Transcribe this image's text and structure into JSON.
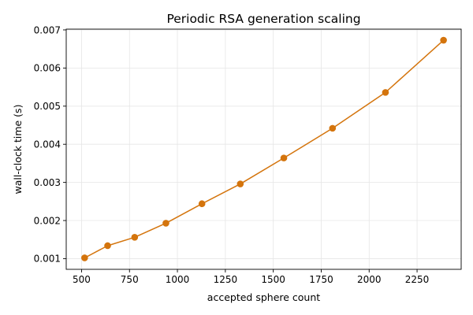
{
  "chart_data": {
    "type": "line",
    "title": "Periodic RSA generation scaling",
    "xlabel": "accepted sphere count",
    "ylabel": "wall-clock time (s)",
    "xlim": [
      420,
      2480
    ],
    "ylim": [
      0.00072,
      0.00702
    ],
    "xticks": [
      500,
      750,
      1000,
      1250,
      1500,
      1750,
      2000,
      2250
    ],
    "yticks": [
      0.001,
      0.002,
      0.003,
      0.004,
      0.005,
      0.006,
      0.007
    ],
    "xtick_labels": [
      "500",
      "750",
      "1000",
      "1250",
      "1500",
      "1750",
      "2000",
      "2250"
    ],
    "ytick_labels": [
      "0.001",
      "0.002",
      "0.003",
      "0.004",
      "0.005",
      "0.006",
      "0.007"
    ],
    "grid": true,
    "color": "#d4740c",
    "series": [
      {
        "x": [
          516,
          636,
          777,
          940,
          1128,
          1328,
          1555,
          1809,
          2085,
          2388
        ],
        "y": [
          0.00102,
          0.00134,
          0.00156,
          0.00193,
          0.00244,
          0.00296,
          0.00364,
          0.00442,
          0.00536,
          0.00673
        ]
      }
    ]
  }
}
